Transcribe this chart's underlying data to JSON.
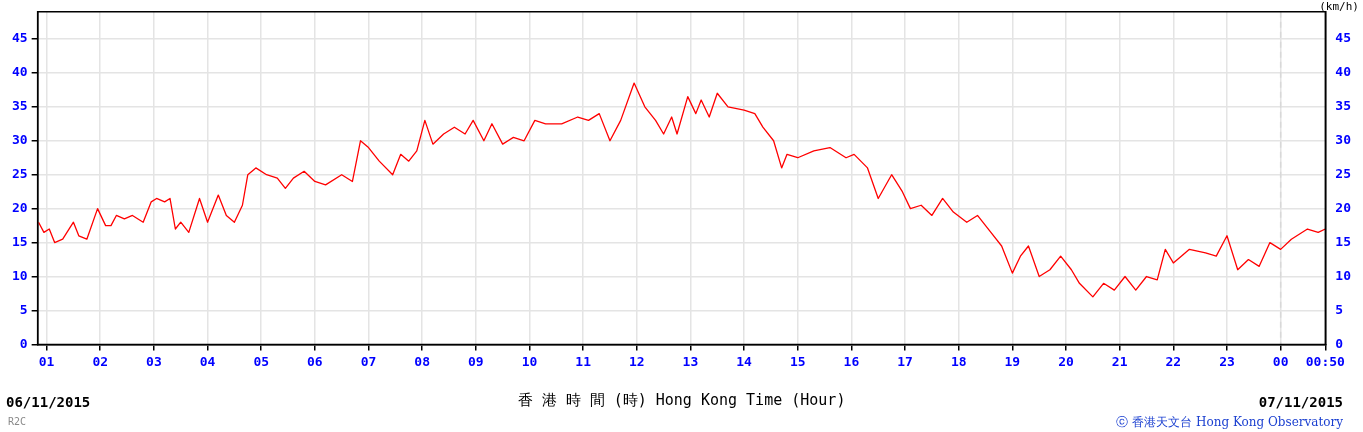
{
  "chart_data": {
    "type": "line",
    "xlabel": "香 港 時 間 (時)  Hong Kong Time (Hour)",
    "y2label": "(km/h)",
    "annotations": [
      "06/11/2015",
      "07/11/2015",
      "ⓒ 香港天文台 Hong Kong Observatory",
      "R2C"
    ],
    "x": [
      "2015-11-06T00:51",
      "2015-11-06T00:57",
      "2015-11-06T01:03",
      "2015-11-06T01:09",
      "2015-11-06T01:18",
      "2015-11-06T01:30",
      "2015-11-06T01:36",
      "2015-11-06T01:45",
      "2015-11-06T01:57",
      "2015-11-06T02:06",
      "2015-11-06T02:12",
      "2015-11-06T02:18",
      "2015-11-06T02:27",
      "2015-11-06T02:36",
      "2015-11-06T02:48",
      "2015-11-06T02:57",
      "2015-11-06T03:03",
      "2015-11-06T03:12",
      "2015-11-06T03:18",
      "2015-11-06T03:24",
      "2015-11-06T03:30",
      "2015-11-06T03:39",
      "2015-11-06T03:51",
      "2015-11-06T04:00",
      "2015-11-06T04:12",
      "2015-11-06T04:21",
      "2015-11-06T04:30",
      "2015-11-06T04:39",
      "2015-11-06T04:45",
      "2015-11-06T04:54",
      "2015-11-06T05:06",
      "2015-11-06T05:18",
      "2015-11-06T05:27",
      "2015-11-06T05:36",
      "2015-11-06T05:48",
      "2015-11-06T06:00",
      "2015-11-06T06:12",
      "2015-11-06T06:30",
      "2015-11-06T06:42",
      "2015-11-06T06:51",
      "2015-11-06T07:00",
      "2015-11-06T07:12",
      "2015-11-06T07:27",
      "2015-11-06T07:36",
      "2015-11-06T07:45",
      "2015-11-06T07:54",
      "2015-11-06T08:03",
      "2015-11-06T08:12",
      "2015-11-06T08:24",
      "2015-11-06T08:36",
      "2015-11-06T08:48",
      "2015-11-06T08:57",
      "2015-11-06T09:09",
      "2015-11-06T09:18",
      "2015-11-06T09:30",
      "2015-11-06T09:42",
      "2015-11-06T09:54",
      "2015-11-06T10:06",
      "2015-11-06T10:18",
      "2015-11-06T10:36",
      "2015-11-06T10:54",
      "2015-11-06T11:06",
      "2015-11-06T11:18",
      "2015-11-06T11:30",
      "2015-11-06T11:42",
      "2015-11-06T11:57",
      "2015-11-06T12:09",
      "2015-11-06T12:21",
      "2015-11-06T12:30",
      "2015-11-06T12:39",
      "2015-11-06T12:45",
      "2015-11-06T12:57",
      "2015-11-06T13:06",
      "2015-11-06T13:12",
      "2015-11-06T13:21",
      "2015-11-06T13:30",
      "2015-11-06T13:42",
      "2015-11-06T14:00",
      "2015-11-06T14:12",
      "2015-11-06T14:21",
      "2015-11-06T14:33",
      "2015-11-06T14:42",
      "2015-11-06T14:48",
      "2015-11-06T15:00",
      "2015-11-06T15:18",
      "2015-11-06T15:36",
      "2015-11-06T15:54",
      "2015-11-06T16:03",
      "2015-11-06T16:18",
      "2015-11-06T16:30",
      "2015-11-06T16:45",
      "2015-11-06T16:57",
      "2015-11-06T17:06",
      "2015-11-06T17:18",
      "2015-11-06T17:30",
      "2015-11-06T17:42",
      "2015-11-06T17:54",
      "2015-11-06T18:09",
      "2015-11-06T18:21",
      "2015-11-06T18:36",
      "2015-11-06T18:48",
      "2015-11-06T19:00",
      "2015-11-06T19:09",
      "2015-11-06T19:18",
      "2015-11-06T19:30",
      "2015-11-06T19:42",
      "2015-11-06T19:54",
      "2015-11-06T20:06",
      "2015-11-06T20:15",
      "2015-11-06T20:30",
      "2015-11-06T20:42",
      "2015-11-06T20:54",
      "2015-11-06T21:06",
      "2015-11-06T21:18",
      "2015-11-06T21:30",
      "2015-11-06T21:42",
      "2015-11-06T21:51",
      "2015-11-06T22:00",
      "2015-11-06T22:18",
      "2015-11-06T22:36",
      "2015-11-06T22:48",
      "2015-11-06T23:00",
      "2015-11-06T23:12",
      "2015-11-06T23:24",
      "2015-11-06T23:36",
      "2015-11-06T23:48",
      "2015-11-07T00:00",
      "2015-11-07T00:12",
      "2015-11-07T00:30",
      "2015-11-07T00:42",
      "2015-11-07T00:50"
    ],
    "series": [
      {
        "color": "#ff0000",
        "values": [
          18,
          16.5,
          17,
          15,
          15.5,
          18,
          16,
          15.5,
          20,
          17.5,
          17.5,
          19,
          18.5,
          19,
          18,
          21,
          21.5,
          21,
          21.5,
          17,
          18,
          16.5,
          21.5,
          18,
          22,
          19,
          18,
          20.5,
          25,
          26,
          25,
          24.5,
          23,
          24.5,
          25.5,
          24,
          23.5,
          25,
          24,
          30,
          29,
          27,
          25,
          28,
          27,
          28.5,
          33,
          29.5,
          31,
          32,
          31,
          33,
          30,
          32.5,
          29.5,
          30.5,
          30,
          33,
          32.5,
          32.5,
          33.5,
          33,
          34,
          30,
          33,
          38.5,
          35,
          33,
          31,
          33.5,
          31,
          36.5,
          34,
          36,
          33.5,
          37,
          35,
          34.5,
          34,
          32,
          30,
          26,
          28,
          27.5,
          28.5,
          29,
          27.5,
          28,
          26,
          21.5,
          25,
          22.5,
          20,
          20.5,
          19,
          21.5,
          19.5,
          18,
          19,
          16.5,
          14.5,
          10.5,
          13,
          14.5,
          10,
          11,
          13,
          11,
          9,
          7,
          9,
          8,
          10,
          8,
          10,
          9.5,
          14,
          12,
          14,
          13.5,
          13,
          16,
          11,
          12.5,
          11.5,
          15,
          14,
          15.5,
          17,
          16.5,
          17
        ]
      }
    ],
    "xlim": [
      "2015-11-06T00:50",
      "2015-11-07T00:50"
    ],
    "xticks": [
      {
        "value": "2015-11-06T01:00",
        "label": "01"
      },
      {
        "value": "2015-11-06T02:00",
        "label": "02"
      },
      {
        "value": "2015-11-06T03:00",
        "label": "03"
      },
      {
        "value": "2015-11-06T04:00",
        "label": "04"
      },
      {
        "value": "2015-11-06T05:00",
        "label": "05"
      },
      {
        "value": "2015-11-06T06:00",
        "label": "06"
      },
      {
        "value": "2015-11-06T07:00",
        "label": "07"
      },
      {
        "value": "2015-11-06T08:00",
        "label": "08"
      },
      {
        "value": "2015-11-06T09:00",
        "label": "09"
      },
      {
        "value": "2015-11-06T10:00",
        "label": "10"
      },
      {
        "value": "2015-11-06T11:00",
        "label": "11"
      },
      {
        "value": "2015-11-06T12:00",
        "label": "12"
      },
      {
        "value": "2015-11-06T13:00",
        "label": "13"
      },
      {
        "value": "2015-11-06T14:00",
        "label": "14"
      },
      {
        "value": "2015-11-06T15:00",
        "label": "15"
      },
      {
        "value": "2015-11-06T16:00",
        "label": "16"
      },
      {
        "value": "2015-11-06T17:00",
        "label": "17"
      },
      {
        "value": "2015-11-06T18:00",
        "label": "18"
      },
      {
        "value": "2015-11-06T19:00",
        "label": "19"
      },
      {
        "value": "2015-11-06T20:00",
        "label": "20"
      },
      {
        "value": "2015-11-06T21:00",
        "label": "21"
      },
      {
        "value": "2015-11-06T22:00",
        "label": "22"
      },
      {
        "value": "2015-11-06T23:00",
        "label": "23"
      },
      {
        "value": "2015-11-07T00:00",
        "label": "00"
      },
      {
        "value": "2015-11-07T00:50",
        "label": "00:50"
      }
    ],
    "ylim": [
      0,
      49
    ],
    "yticks": [
      0,
      5,
      10,
      15,
      20,
      25,
      30,
      35,
      40,
      45
    ],
    "y2lim": [
      0,
      49
    ],
    "y2ticks": [
      0,
      5,
      10,
      15,
      20,
      25,
      30,
      35,
      40,
      45
    ],
    "ref_lines": [
      {
        "axis": "x",
        "value": "2015-11-07T00:00",
        "color": "#d8d8d8",
        "line_style": "dashed"
      }
    ],
    "grid": true,
    "legend": false,
    "marker": "none",
    "line_style": "solid"
  }
}
